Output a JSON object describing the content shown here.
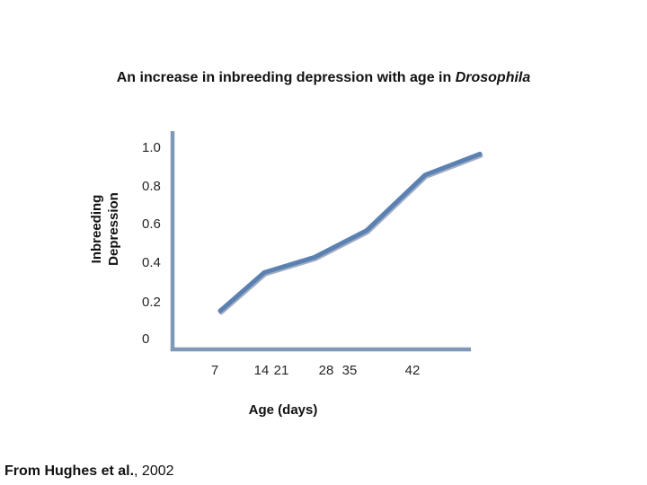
{
  "slide": {
    "citation": {
      "bold_part": "From Hughes et al.",
      "normal_part": ", 2002"
    }
  },
  "chart_data": {
    "type": "line",
    "title": "An increase in inbreeding depression with age in Drosophila",
    "title_plain": "An increase in inbreeding depression with age in ",
    "title_italic": "Drosophila",
    "xlabel": "Age (days)",
    "ylabel": "Inbreeding Depression",
    "ylabel_lines": [
      "Inbreeding",
      "Depression"
    ],
    "x": [
      7,
      14,
      21,
      28,
      35,
      42
    ],
    "x_tick_labels": [
      "7",
      "14",
      "21",
      "28",
      "35",
      "42"
    ],
    "y_tick_labels": [
      "1.0",
      "0.8",
      "0.6",
      "0.4",
      "0.2",
      "0"
    ],
    "y_tick_values": [
      1.0,
      0.8,
      0.6,
      0.4,
      0.2,
      0
    ],
    "series": [
      {
        "name": "Inbreeding depression",
        "values": [
          0.15,
          0.35,
          0.43,
          0.57,
          0.86,
          0.97
        ]
      }
    ],
    "ylim": [
      0,
      1.0
    ],
    "grid": false,
    "legend": false,
    "line_color": "#5b80b2",
    "line_shadow_color": "#3f5c85",
    "axis_color": "#7e99b8"
  }
}
